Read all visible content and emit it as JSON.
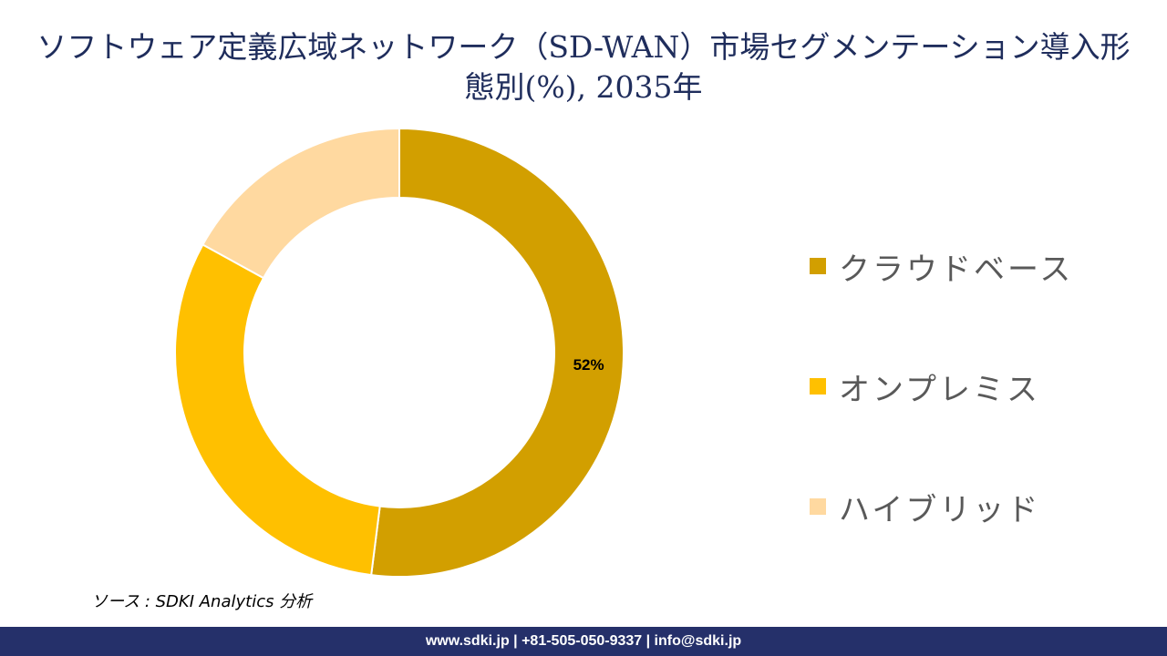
{
  "title": "ソフトウェア定義広域ネットワーク（SD-WAN）市場セグメンテーション導入形態別(%), 2035年",
  "chart_data": {
    "type": "pie",
    "variant": "donut",
    "title": "ソフトウェア定義広域ネットワーク（SD-WAN）市場セグメンテーション導入形態別(%), 2035年",
    "categories": [
      "クラウドベース",
      "オンプレミス",
      "ハイブリッド"
    ],
    "values": [
      52,
      31,
      17
    ],
    "data_labels": [
      "52%",
      "",
      ""
    ],
    "colors": [
      "#D29F00",
      "#FFC000",
      "#FFD9A0"
    ],
    "legend_position": "right"
  },
  "source": "ソース : SDKI Analytics 分析",
  "footer": "www.sdki.jp | +81-505-050-9337 | info@sdki.jp"
}
